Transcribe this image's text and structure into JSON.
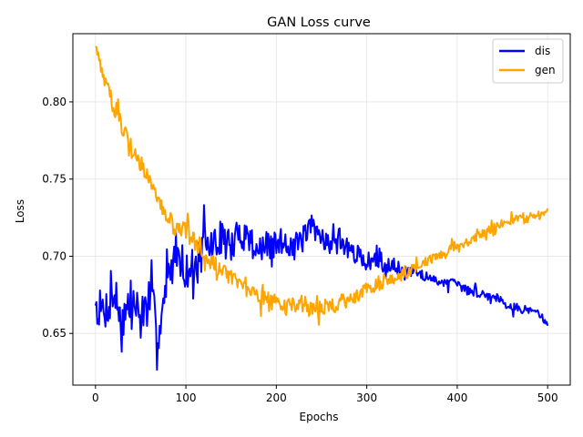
{
  "chart_data": {
    "type": "line",
    "title": "GAN Loss curve",
    "xlabel": "Epochs",
    "ylabel": "Loss",
    "xlim": [
      -25,
      525
    ],
    "ylim": [
      0.6165,
      0.8442
    ],
    "xticks": [
      0,
      100,
      200,
      300,
      400,
      500
    ],
    "yticks": [
      0.65,
      0.7,
      0.75,
      0.8
    ],
    "ytick_labels": [
      "0.65",
      "0.70",
      "0.75",
      "0.80"
    ],
    "grid": true,
    "legend_position": "top-right",
    "x": [
      0,
      10,
      20,
      30,
      40,
      50,
      60,
      70,
      80,
      90,
      100,
      110,
      120,
      130,
      140,
      150,
      160,
      170,
      180,
      190,
      200,
      210,
      220,
      230,
      240,
      250,
      260,
      270,
      280,
      290,
      300,
      310,
      320,
      330,
      340,
      350,
      360,
      370,
      380,
      390,
      400,
      410,
      420,
      430,
      440,
      450,
      460,
      470,
      480,
      490,
      500
    ],
    "series": [
      {
        "name": "dis",
        "color": "#0000ff",
        "values": [
          0.668,
          0.664,
          0.676,
          0.659,
          0.672,
          0.66,
          0.672,
          0.652,
          0.684,
          0.706,
          0.69,
          0.694,
          0.706,
          0.707,
          0.713,
          0.704,
          0.716,
          0.712,
          0.704,
          0.706,
          0.707,
          0.711,
          0.705,
          0.712,
          0.718,
          0.714,
          0.707,
          0.712,
          0.703,
          0.701,
          0.697,
          0.697,
          0.694,
          0.696,
          0.688,
          0.69,
          0.689,
          0.685,
          0.684,
          0.683,
          0.682,
          0.678,
          0.677,
          0.675,
          0.674,
          0.672,
          0.667,
          0.666,
          0.665,
          0.664,
          0.655
        ],
        "amplitude": [
          0.012,
          0.013,
          0.016,
          0.016,
          0.015,
          0.016,
          0.015,
          0.014,
          0.013,
          0.013,
          0.012,
          0.012,
          0.013,
          0.012,
          0.011,
          0.012,
          0.011,
          0.011,
          0.01,
          0.01,
          0.01,
          0.009,
          0.009,
          0.009,
          0.008,
          0.008,
          0.007,
          0.007,
          0.006,
          0.006,
          0.006,
          0.005,
          0.005,
          0.005,
          0.004,
          0.004,
          0.004,
          0.003,
          0.003,
          0.003,
          0.003,
          0.003,
          0.003,
          0.003,
          0.003,
          0.003,
          0.003,
          0.003,
          0.002,
          0.002,
          0.002
        ]
      },
      {
        "name": "gen",
        "color": "#ffa500",
        "values": [
          0.836,
          0.814,
          0.798,
          0.784,
          0.772,
          0.76,
          0.748,
          0.735,
          0.724,
          0.718,
          0.716,
          0.71,
          0.703,
          0.696,
          0.69,
          0.686,
          0.681,
          0.678,
          0.675,
          0.672,
          0.67,
          0.668,
          0.667,
          0.669,
          0.665,
          0.667,
          0.668,
          0.67,
          0.672,
          0.675,
          0.679,
          0.682,
          0.684,
          0.686,
          0.688,
          0.691,
          0.695,
          0.698,
          0.701,
          0.704,
          0.707,
          0.709,
          0.712,
          0.716,
          0.718,
          0.721,
          0.724,
          0.725,
          0.726,
          0.725,
          0.731
        ],
        "amplitude": [
          0.003,
          0.005,
          0.006,
          0.006,
          0.006,
          0.006,
          0.005,
          0.005,
          0.006,
          0.006,
          0.006,
          0.006,
          0.006,
          0.006,
          0.005,
          0.005,
          0.005,
          0.005,
          0.006,
          0.006,
          0.006,
          0.006,
          0.006,
          0.006,
          0.005,
          0.005,
          0.005,
          0.005,
          0.005,
          0.005,
          0.005,
          0.005,
          0.005,
          0.004,
          0.004,
          0.004,
          0.003,
          0.003,
          0.003,
          0.003,
          0.003,
          0.003,
          0.003,
          0.003,
          0.003,
          0.003,
          0.003,
          0.003,
          0.002,
          0.002,
          0.002
        ]
      }
    ]
  }
}
